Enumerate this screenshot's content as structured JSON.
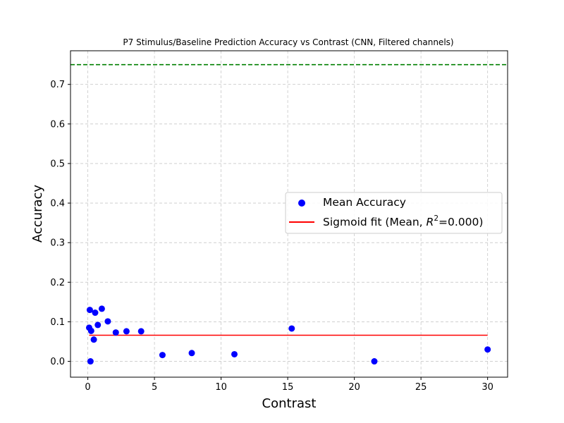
{
  "chart_data": {
    "type": "scatter",
    "title": "P7 Stimulus/Baseline Prediction Accuracy vs Contrast (CNN, Filtered channels)",
    "xlabel": "Contrast",
    "ylabel": "Accuracy",
    "xlim": [
      -1.3,
      31.5
    ],
    "ylim": [
      -0.04,
      0.785
    ],
    "xticks": [
      0,
      5,
      10,
      15,
      20,
      25,
      30
    ],
    "yticks": [
      0.0,
      0.1,
      0.2,
      0.3,
      0.4,
      0.5,
      0.6,
      0.7
    ],
    "xtick_labels": [
      "0",
      "5",
      "10",
      "15",
      "20",
      "25",
      "30"
    ],
    "ytick_labels": [
      "0.0",
      "0.1",
      "0.2",
      "0.3",
      "0.4",
      "0.5",
      "0.6",
      "0.7"
    ],
    "grid": true,
    "legend_position": "center-right",
    "series": [
      {
        "name": "Mean Accuracy",
        "kind": "scatter",
        "color": "#0000ff",
        "points": [
          [
            0.1,
            0.085
          ],
          [
            0.15,
            0.13
          ],
          [
            0.2,
            0.0
          ],
          [
            0.25,
            0.077
          ],
          [
            0.45,
            0.055
          ],
          [
            0.55,
            0.123
          ],
          [
            0.75,
            0.092
          ],
          [
            1.05,
            0.133
          ],
          [
            1.5,
            0.101
          ],
          [
            2.1,
            0.073
          ],
          [
            2.9,
            0.076
          ],
          [
            4.0,
            0.076
          ],
          [
            5.6,
            0.016
          ],
          [
            7.8,
            0.021
          ],
          [
            11.0,
            0.018
          ],
          [
            15.3,
            0.083
          ],
          [
            21.5,
            0.0
          ],
          [
            30.0,
            0.03
          ]
        ]
      },
      {
        "name": "Sigmoid fit (Mean, R²=0.000)",
        "kind": "line",
        "color": "#ff0000",
        "points": [
          [
            0.1,
            0.066
          ],
          [
            30.0,
            0.066
          ]
        ]
      }
    ],
    "reference_line": {
      "y": 0.75,
      "color": "#008000",
      "style": "dashed"
    },
    "legend": {
      "scatter_label": "Mean Accuracy",
      "fit_label_prefix": "Sigmoid fit (Mean, ",
      "fit_label_r": "R",
      "fit_label_sup": "2",
      "fit_label_suffix": "=0.000)"
    }
  }
}
